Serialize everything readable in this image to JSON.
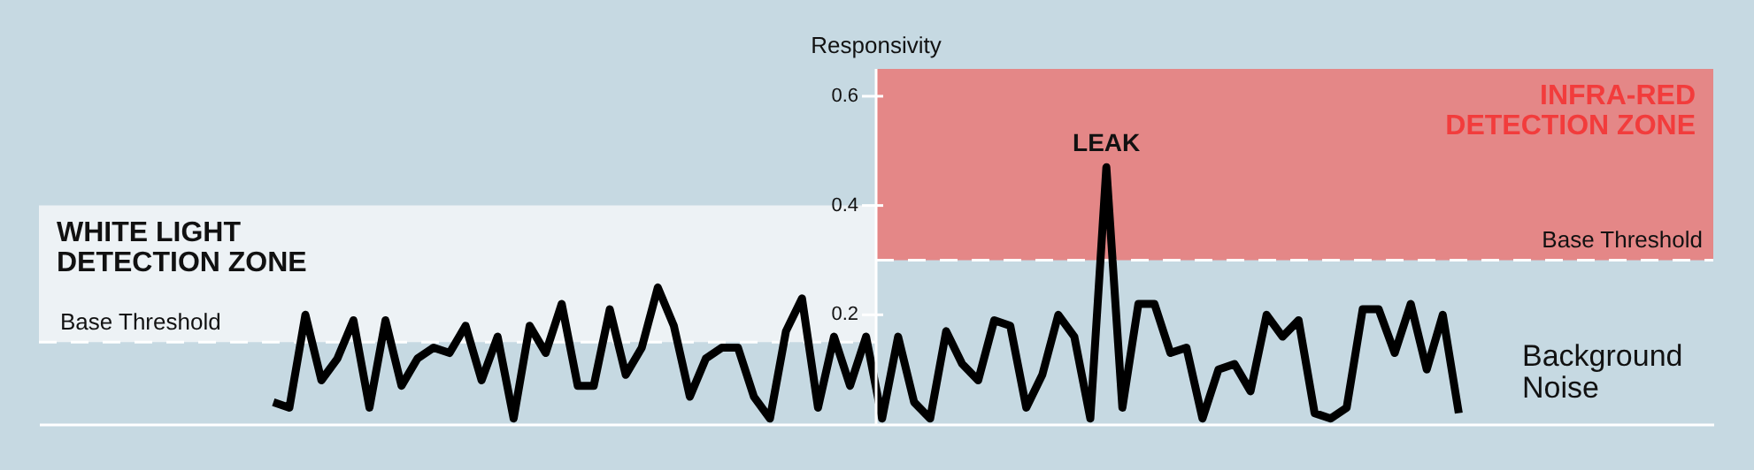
{
  "chart_data": {
    "type": "line",
    "ylabel": "Responsivity",
    "categories": [
      null,
      null,
      null,
      null,
      null,
      null,
      null,
      null,
      null,
      null,
      null,
      null,
      null,
      null,
      null,
      null,
      null,
      null,
      null,
      null,
      null,
      null,
      null,
      null,
      null,
      null,
      null,
      null,
      null,
      null,
      null,
      null,
      null,
      null,
      null,
      null,
      null,
      null,
      null,
      null,
      null,
      null,
      null,
      null,
      null,
      null,
      null,
      null,
      null,
      null,
      null,
      null,
      null,
      null,
      null,
      null,
      null,
      null,
      null,
      null,
      null,
      null,
      null,
      null,
      null,
      null,
      null,
      null,
      null,
      null,
      null,
      null,
      null,
      null,
      null
    ],
    "series": [
      {
        "color": "#000000",
        "values": [
          0.04,
          0.03,
          0.2,
          0.08,
          0.12,
          0.19,
          0.03,
          0.19,
          0.07,
          0.12,
          0.14,
          0.13,
          0.18,
          0.08,
          0.16,
          0.01,
          0.18,
          0.13,
          0.22,
          0.07,
          0.07,
          0.21,
          0.09,
          0.14,
          0.25,
          0.18,
          0.05,
          0.12,
          0.14,
          0.14,
          0.05,
          0.01,
          0.17,
          0.23,
          0.03,
          0.16,
          0.07,
          0.16,
          0.01,
          0.16,
          0.04,
          0.01,
          0.17,
          0.11,
          0.08,
          0.19,
          0.18,
          0.03,
          0.09,
          0.2,
          0.16,
          0.01,
          0.47,
          0.03,
          0.22,
          0.22,
          0.13,
          0.14,
          0.01,
          0.1,
          0.11,
          0.06,
          0.2,
          0.16,
          0.19,
          0.02,
          0.01,
          0.03,
          0.21,
          0.21,
          0.13,
          0.22,
          0.1,
          0.2,
          0.02
        ]
      }
    ],
    "ylim": [
      0,
      0.65
    ],
    "yticks": [
      0.2,
      0.4,
      0.6
    ],
    "tick_labels": "y",
    "bands": [
      {
        "axis": "y",
        "from": 0.15,
        "to": 0.4,
        "label": "WHITE LIGHT DETECTION ZONE",
        "color": "#edf2f5"
      },
      {
        "axis": "y",
        "from": 0.3,
        "to": 0.65,
        "label": "INFRA-RED DETECTION ZONE",
        "color": "#e48787"
      }
    ],
    "ref_lines": [
      {
        "axis": "y",
        "value": 0.15,
        "label": "Base Threshold",
        "color": "#ffffff",
        "line_style": "dashed"
      },
      {
        "axis": "y",
        "value": 0.3,
        "label": "Base Threshold",
        "color": "#ffffff",
        "line_style": "dashed"
      }
    ],
    "annotations": [
      {
        "text": "LEAK",
        "y": 0.47
      },
      "Background Noise"
    ],
    "marker": "none",
    "line_style": "solid"
  }
}
